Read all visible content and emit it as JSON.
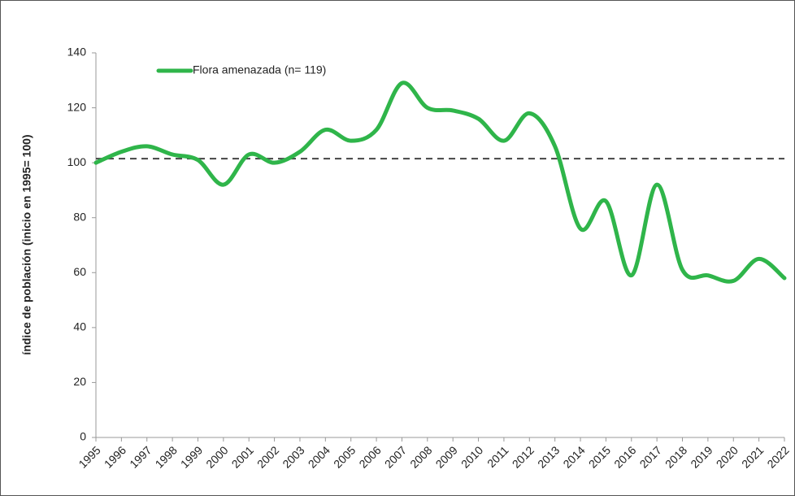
{
  "chart_data": {
    "type": "line",
    "y_label": "índice de población (inicio en 1995= 100)",
    "categories": [
      "1995",
      "1996",
      "1997",
      "1998",
      "1999",
      "2000",
      "2001",
      "2002",
      "2003",
      "2004",
      "2005",
      "2006",
      "2007",
      "2008",
      "2009",
      "2010",
      "2011",
      "2012",
      "2013",
      "2014",
      "2015",
      "2016",
      "2017",
      "2018",
      "2019",
      "2020",
      "2021",
      "2022"
    ],
    "series": [
      {
        "name": "Flora amenazada (n= 119)",
        "color": "#2fb54a",
        "values": [
          100,
          104,
          106,
          103,
          101,
          92,
          103,
          100,
          104,
          112,
          108,
          112,
          129,
          120,
          119,
          116,
          108,
          118,
          106,
          76,
          86,
          59,
          92,
          61,
          59,
          57,
          65,
          58
        ]
      }
    ],
    "reference_line": 101.5,
    "ylim": [
      0,
      140
    ],
    "yticks": [
      0,
      20,
      40,
      60,
      80,
      100,
      120,
      140
    ],
    "legend": "upper left",
    "grid": false,
    "smooth": true
  }
}
